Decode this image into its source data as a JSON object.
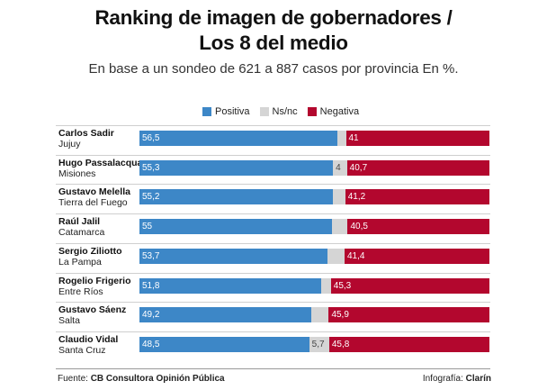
{
  "header": {
    "title_line1": "Ranking de imagen de gobernadores /",
    "title_line2": "Los 8 del medio",
    "subtitle": "En base a un sondeo de 621 a 887 casos por provincia En %."
  },
  "legend": [
    {
      "label": "Positiva",
      "color": "#3d87c7"
    },
    {
      "label": "Ns/nc",
      "color": "#d5d5d5"
    },
    {
      "label": "Negativa",
      "color": "#b3072e"
    }
  ],
  "chart_data": {
    "type": "bar",
    "stacked": true,
    "orientation": "horizontal",
    "title": "Ranking de imagen de gobernadores / Los 8 del medio",
    "subtitle": "En base a un sondeo de 621 a 887 casos por provincia En %.",
    "xlim": [
      0,
      100
    ],
    "legend_position": "top-center",
    "categories": [
      {
        "name": "Carlos Sadir",
        "province": "Jujuy"
      },
      {
        "name": "Hugo Passalacqua",
        "province": "Misiones"
      },
      {
        "name": "Gustavo Melella",
        "province": "Tierra del Fuego"
      },
      {
        "name": "Raúl Jalil",
        "province": "Catamarca"
      },
      {
        "name": "Sergio Ziliotto",
        "province": "La Pampa"
      },
      {
        "name": "Rogelio Frigerio",
        "province": "Entre Ríos"
      },
      {
        "name": "Gustavo Sáenz",
        "province": "Salta"
      },
      {
        "name": "Claudio Vidal",
        "province": "Santa Cruz"
      }
    ],
    "series": [
      {
        "name": "Positiva",
        "color": "#3d87c7",
        "values": [
          56.5,
          55.3,
          55.2,
          55,
          53.7,
          51.8,
          49.2,
          48.5
        ],
        "labels": [
          "56,5",
          "55,3",
          "55,2",
          "55",
          "53,7",
          "51,8",
          "49,2",
          "48,5"
        ]
      },
      {
        "name": "Ns/nc",
        "color": "#d5d5d5",
        "values": [
          2.5,
          4,
          3.6,
          4.5,
          4.9,
          2.9,
          4.9,
          5.7
        ],
        "labels": [
          "",
          "4",
          "",
          "",
          "",
          "",
          "",
          "5,7"
        ]
      },
      {
        "name": "Negativa",
        "color": "#b3072e",
        "values": [
          41,
          40.7,
          41.2,
          40.5,
          41.4,
          45.3,
          45.9,
          45.8
        ],
        "labels": [
          "41",
          "40,7",
          "41,2",
          "40,5",
          "41,4",
          "45,3",
          "45,9",
          "45,8"
        ]
      }
    ]
  },
  "footer": {
    "source_prefix": "Fuente: ",
    "source_name": "CB Consultora Opinión Pública",
    "credit_prefix": "Infografía: ",
    "credit_name": "Clarín"
  }
}
